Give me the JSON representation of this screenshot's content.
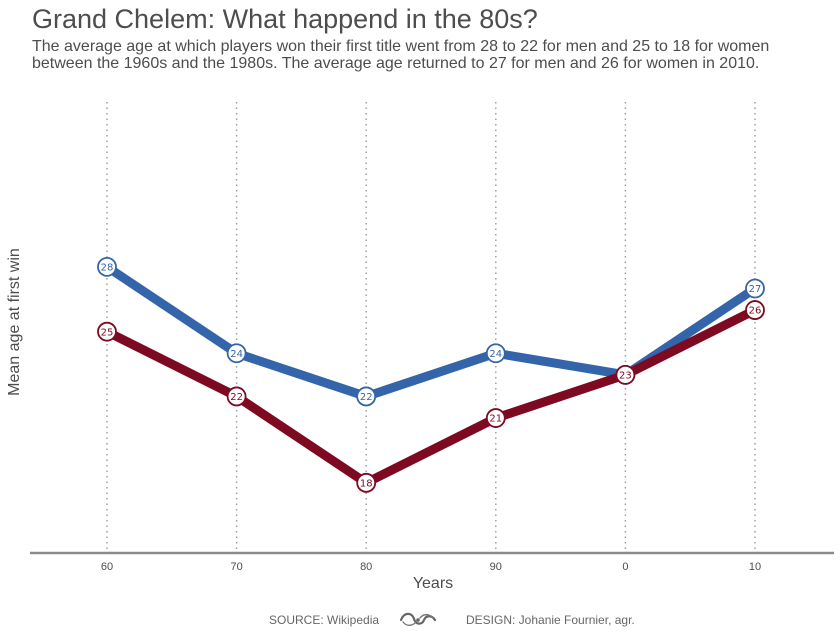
{
  "title": "Grand Chelem: What happend in the 80s?",
  "subtitle_lines": [
    "The average age at which players won their first title went from 28 to 22 for men and 25 to 18 for women",
    "between the 1960s and the 1980s. The average age returned to 27 for men and 26 for women in 2010."
  ],
  "footer": {
    "source": "SOURCE: Wikipedia",
    "design": "DESIGN: Johanie Fournier, agr.",
    "logo_icon": "ornament-swirl-icon"
  },
  "chart_data": {
    "type": "line",
    "categories": [
      "60",
      "70",
      "80",
      "90",
      "0",
      "10"
    ],
    "series": [
      {
        "values": [
          28,
          24,
          22,
          24,
          23,
          27
        ],
        "color": "#3465aa"
      },
      {
        "values": [
          25,
          22,
          18,
          21,
          23,
          26
        ],
        "color": "#7d0a20"
      }
    ],
    "xlabel": "Years",
    "ylabel": "Mean age at first win",
    "ylim": [
      14.75,
      36.1
    ],
    "grid": {
      "vertical": true,
      "style": "dotted",
      "horizontal": false
    },
    "colors": {
      "axis": "#8c8c8c",
      "grid": "#9a9a9a",
      "tick_label": "#4d4d4d"
    }
  }
}
